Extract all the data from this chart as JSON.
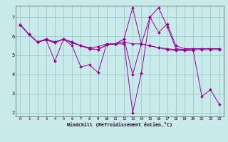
{
  "xlabel": "Windchill (Refroidissement éolien,°C)",
  "background_color": "#c8eaea",
  "grid_color": "#a0c8c8",
  "line_color": "#990099",
  "xlim_min": -0.5,
  "xlim_max": 23.5,
  "ylim_min": 1.8,
  "ylim_max": 7.6,
  "xticks": [
    0,
    1,
    2,
    3,
    4,
    5,
    6,
    7,
    8,
    9,
    10,
    11,
    12,
    13,
    14,
    15,
    16,
    17,
    18,
    19,
    20,
    21,
    22,
    23
  ],
  "yticks": [
    2,
    3,
    4,
    5,
    6,
    7
  ],
  "series": [
    [
      6.6,
      6.1,
      5.7,
      5.8,
      4.7,
      5.85,
      5.5,
      4.4,
      4.5,
      4.1,
      5.6,
      5.6,
      5.85,
      4.0,
      5.6,
      5.5,
      5.4,
      5.3,
      5.25,
      5.25,
      5.25,
      2.85,
      3.2,
      2.45
    ],
    [
      6.6,
      6.1,
      5.7,
      5.85,
      5.7,
      5.85,
      5.7,
      5.5,
      5.4,
      5.45,
      5.6,
      5.6,
      5.85,
      7.5,
      5.6,
      7.0,
      6.2,
      6.65,
      5.5,
      5.35,
      5.35,
      5.35,
      5.35,
      5.35
    ],
    [
      6.6,
      6.1,
      5.7,
      5.8,
      5.65,
      5.85,
      5.65,
      5.5,
      5.35,
      5.3,
      5.55,
      5.6,
      5.6,
      2.0,
      4.05,
      7.0,
      7.5,
      6.5,
      5.35,
      5.3,
      5.35,
      5.35,
      5.35,
      5.35
    ],
    [
      6.6,
      6.1,
      5.7,
      5.85,
      5.7,
      5.85,
      5.7,
      5.5,
      5.35,
      5.3,
      5.55,
      5.6,
      5.7,
      5.6,
      5.6,
      5.5,
      5.4,
      5.35,
      5.3,
      5.3,
      5.3,
      5.3,
      5.3,
      5.3
    ]
  ],
  "figwidth": 3.2,
  "figheight": 2.0,
  "dpi": 100
}
